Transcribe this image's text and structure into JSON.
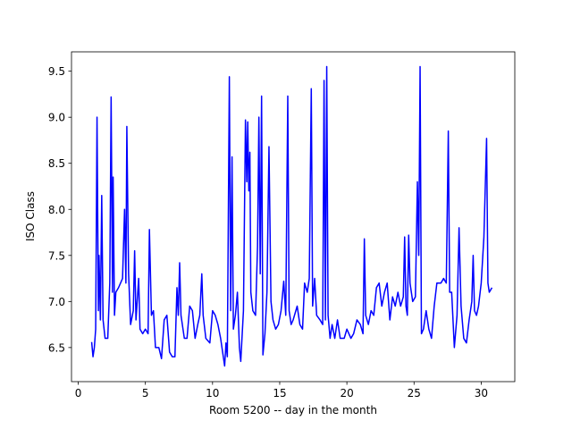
{
  "chart_data": {
    "type": "line",
    "x_label": "Room 5200 -- day in the month",
    "y_label": "ISO Class",
    "color": "#0000ff",
    "grid": false,
    "xlim": [
      -0.5,
      32.5
    ],
    "ylim": [
      6.13,
      9.71
    ],
    "xticks": [
      0,
      5,
      10,
      15,
      20,
      25,
      30
    ],
    "yticks": [
      6.5,
      {
        "value": 7,
        "label": "7.0"
      },
      7.5,
      {
        "value": 8,
        "label": "8.0"
      },
      8.5,
      {
        "value": 9,
        "label": "9.0"
      },
      9.5
    ],
    "x": [
      1.0,
      1.1,
      1.2,
      1.3,
      1.4,
      1.5,
      1.55,
      1.65,
      1.75,
      1.85,
      2.0,
      2.2,
      2.35,
      2.45,
      2.55,
      2.6,
      2.7,
      2.8,
      3.0,
      3.3,
      3.45,
      3.55,
      3.62,
      3.75,
      3.9,
      4.1,
      4.2,
      4.3,
      4.5,
      4.6,
      4.8,
      5.0,
      5.2,
      5.3,
      5.45,
      5.6,
      5.75,
      6.0,
      6.2,
      6.4,
      6.6,
      6.8,
      7.0,
      7.2,
      7.35,
      7.45,
      7.55,
      7.65,
      7.9,
      8.1,
      8.3,
      8.5,
      8.7,
      8.9,
      9.05,
      9.2,
      9.3,
      9.5,
      9.8,
      10.0,
      10.2,
      10.4,
      10.6,
      10.75,
      10.9,
      11.0,
      11.1,
      11.25,
      11.35,
      11.45,
      11.55,
      11.7,
      11.85,
      12.0,
      12.1,
      12.3,
      12.45,
      12.55,
      12.62,
      12.7,
      12.78,
      12.85,
      13.0,
      13.2,
      13.35,
      13.45,
      13.55,
      13.65,
      13.75,
      13.9,
      14.05,
      14.2,
      14.35,
      14.5,
      14.7,
      14.9,
      15.1,
      15.3,
      15.45,
      15.6,
      15.7,
      15.85,
      16.0,
      16.3,
      16.5,
      16.7,
      16.85,
      17.05,
      17.2,
      17.35,
      17.45,
      17.6,
      17.75,
      18.0,
      18.2,
      18.3,
      18.4,
      18.5,
      18.6,
      18.75,
      18.9,
      19.1,
      19.3,
      19.5,
      19.8,
      20.0,
      20.3,
      20.5,
      20.75,
      21.0,
      21.2,
      21.3,
      21.4,
      21.6,
      21.8,
      22.0,
      22.2,
      22.4,
      22.6,
      22.8,
      23.0,
      23.2,
      23.4,
      23.6,
      23.8,
      24.0,
      24.2,
      24.3,
      24.4,
      24.5,
      24.6,
      24.7,
      24.9,
      25.1,
      25.25,
      25.35,
      25.45,
      25.55,
      25.7,
      25.9,
      26.1,
      26.3,
      26.5,
      26.7,
      27.0,
      27.2,
      27.4,
      27.55,
      27.65,
      27.8,
      27.9,
      28.0,
      28.2,
      28.35,
      28.5,
      28.7,
      28.9,
      29.1,
      29.3,
      29.4,
      29.5,
      29.65,
      29.8,
      30.0,
      30.2,
      30.4,
      30.5,
      30.6,
      30.8
    ],
    "values": [
      6.56,
      6.4,
      6.5,
      6.7,
      9.0,
      6.9,
      7.5,
      6.8,
      8.15,
      6.8,
      6.6,
      6.6,
      7.2,
      9.22,
      7.1,
      8.35,
      6.85,
      7.1,
      7.15,
      7.25,
      8.0,
      7.2,
      8.9,
      7.3,
      6.75,
      6.9,
      7.55,
      6.8,
      7.25,
      6.7,
      6.65,
      6.7,
      6.65,
      7.78,
      6.85,
      6.9,
      6.5,
      6.5,
      6.38,
      6.8,
      6.85,
      6.45,
      6.4,
      6.4,
      7.15,
      6.85,
      7.42,
      6.85,
      6.6,
      6.6,
      6.95,
      6.9,
      6.6,
      6.75,
      6.85,
      7.3,
      6.85,
      6.6,
      6.55,
      6.9,
      6.85,
      6.75,
      6.6,
      6.45,
      6.3,
      6.55,
      6.4,
      9.44,
      6.9,
      8.57,
      6.7,
      6.85,
      7.1,
      6.5,
      6.35,
      6.9,
      8.97,
      8.3,
      8.95,
      8.2,
      8.62,
      7.1,
      6.9,
      6.85,
      7.6,
      9.0,
      7.3,
      9.23,
      6.42,
      6.65,
      7.1,
      8.68,
      7.0,
      6.8,
      6.7,
      6.75,
      6.9,
      7.22,
      6.85,
      9.23,
      6.9,
      6.75,
      6.8,
      6.95,
      6.75,
      6.7,
      7.2,
      7.1,
      7.25,
      9.31,
      6.95,
      7.25,
      6.85,
      6.8,
      6.75,
      9.4,
      6.8,
      9.55,
      6.85,
      6.6,
      6.75,
      6.6,
      6.8,
      6.6,
      6.6,
      6.7,
      6.6,
      6.65,
      6.8,
      6.75,
      6.65,
      7.68,
      6.85,
      6.75,
      6.9,
      6.85,
      7.15,
      7.2,
      6.95,
      7.1,
      7.2,
      6.8,
      7.05,
      6.95,
      7.1,
      6.95,
      7.05,
      7.7,
      6.95,
      6.85,
      7.72,
      7.2,
      7.0,
      7.05,
      8.3,
      7.5,
      9.55,
      6.65,
      6.7,
      6.9,
      6.7,
      6.6,
      6.95,
      7.2,
      7.2,
      7.25,
      7.2,
      8.85,
      7.1,
      7.1,
      6.8,
      6.5,
      6.85,
      7.8,
      6.95,
      6.6,
      6.55,
      6.8,
      7.0,
      7.5,
      6.9,
      6.85,
      6.95,
      7.2,
      7.7,
      8.77,
      7.2,
      7.1,
      7.15
    ]
  }
}
